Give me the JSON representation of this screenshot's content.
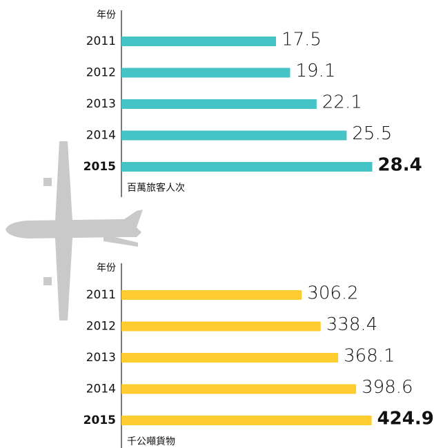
{
  "chart_data": [
    {
      "type": "bar",
      "orientation": "horizontal",
      "y_label": "年份",
      "x_label": "百萬旅客人次",
      "categories": [
        "2011",
        "2012",
        "2013",
        "2014",
        "2015"
      ],
      "values": [
        17.5,
        19.1,
        22.1,
        25.5,
        28.4
      ],
      "color": "#45c3c5",
      "xlim": [
        0,
        30
      ]
    },
    {
      "type": "bar",
      "orientation": "horizontal",
      "y_label": "年份",
      "x_label": "千公噸貨物",
      "categories": [
        "2011",
        "2012",
        "2013",
        "2014",
        "2015"
      ],
      "values": [
        306.2,
        338.4,
        368.1,
        398.6,
        424.9
      ],
      "color": "#fdcc2e",
      "xlim": [
        0,
        450
      ]
    }
  ]
}
